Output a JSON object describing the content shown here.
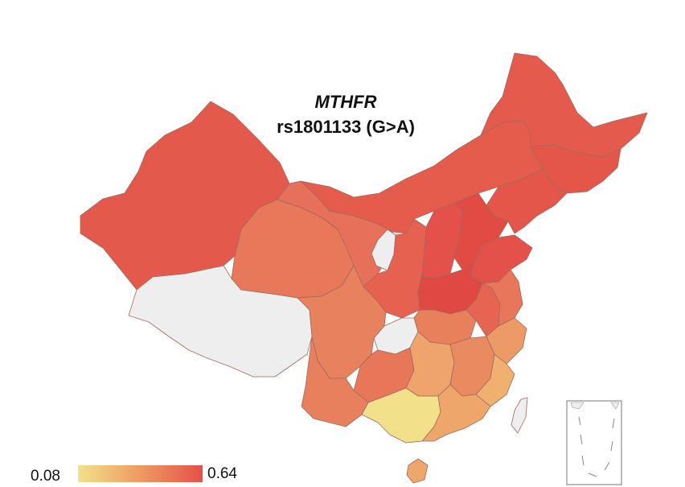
{
  "title": {
    "gene": "MTHFR",
    "snp": "rs1801133 (G>A)"
  },
  "legend": {
    "min_label": "0.08",
    "max_label": "0.64",
    "color_low": "#f2e18a",
    "color_mid": "#ee9a62",
    "color_high": "#e6504a",
    "no_data_color": "#eeeeee"
  },
  "regions": [
    {
      "name": "Xinjiang",
      "shade": "#e35a4d"
    },
    {
      "name": "Tibet",
      "shade": "#eeeeee"
    },
    {
      "name": "Qinghai",
      "shade": "#e8785a"
    },
    {
      "name": "Gansu",
      "shade": "#e6705a"
    },
    {
      "name": "Inner Mongolia",
      "shade": "#e55b4c"
    },
    {
      "name": "Heilongjiang",
      "shade": "#e45b4d"
    },
    {
      "name": "Jilin",
      "shade": "#e4564a"
    },
    {
      "name": "Liaoning",
      "shade": "#e4564a"
    },
    {
      "name": "Ningxia",
      "shade": "#eeeeee"
    },
    {
      "name": "Shaanxi",
      "shade": "#e66150"
    },
    {
      "name": "Shanxi",
      "shade": "#e4504a"
    },
    {
      "name": "Hebei",
      "shade": "#e24a44"
    },
    {
      "name": "Shandong",
      "shade": "#e4504a"
    },
    {
      "name": "Henan",
      "shade": "#e04844"
    },
    {
      "name": "Sichuan",
      "shade": "#e8815e"
    },
    {
      "name": "Chongqing",
      "shade": "#eeeeee"
    },
    {
      "name": "Hubei",
      "shade": "#e9805c"
    },
    {
      "name": "Anhui",
      "shade": "#e66552"
    },
    {
      "name": "Jiangsu",
      "shade": "#e8765a"
    },
    {
      "name": "Zhejiang",
      "shade": "#ec9a66"
    },
    {
      "name": "Yunnan",
      "shade": "#e8805e"
    },
    {
      "name": "Guizhou",
      "shade": "#e8775a"
    },
    {
      "name": "Hunan",
      "shade": "#eea46a"
    },
    {
      "name": "Jiangxi",
      "shade": "#ea8a60"
    },
    {
      "name": "Fujian",
      "shade": "#f0b070"
    },
    {
      "name": "Guangxi",
      "shade": "#f2e08a"
    },
    {
      "name": "Guangdong",
      "shade": "#eea66b"
    },
    {
      "name": "Hainan",
      "shade": "#eea66b"
    },
    {
      "name": "Taiwan",
      "shade": "#eeeeee"
    },
    {
      "name": "South China Sea inset",
      "shade": "#ffffff"
    }
  ]
}
